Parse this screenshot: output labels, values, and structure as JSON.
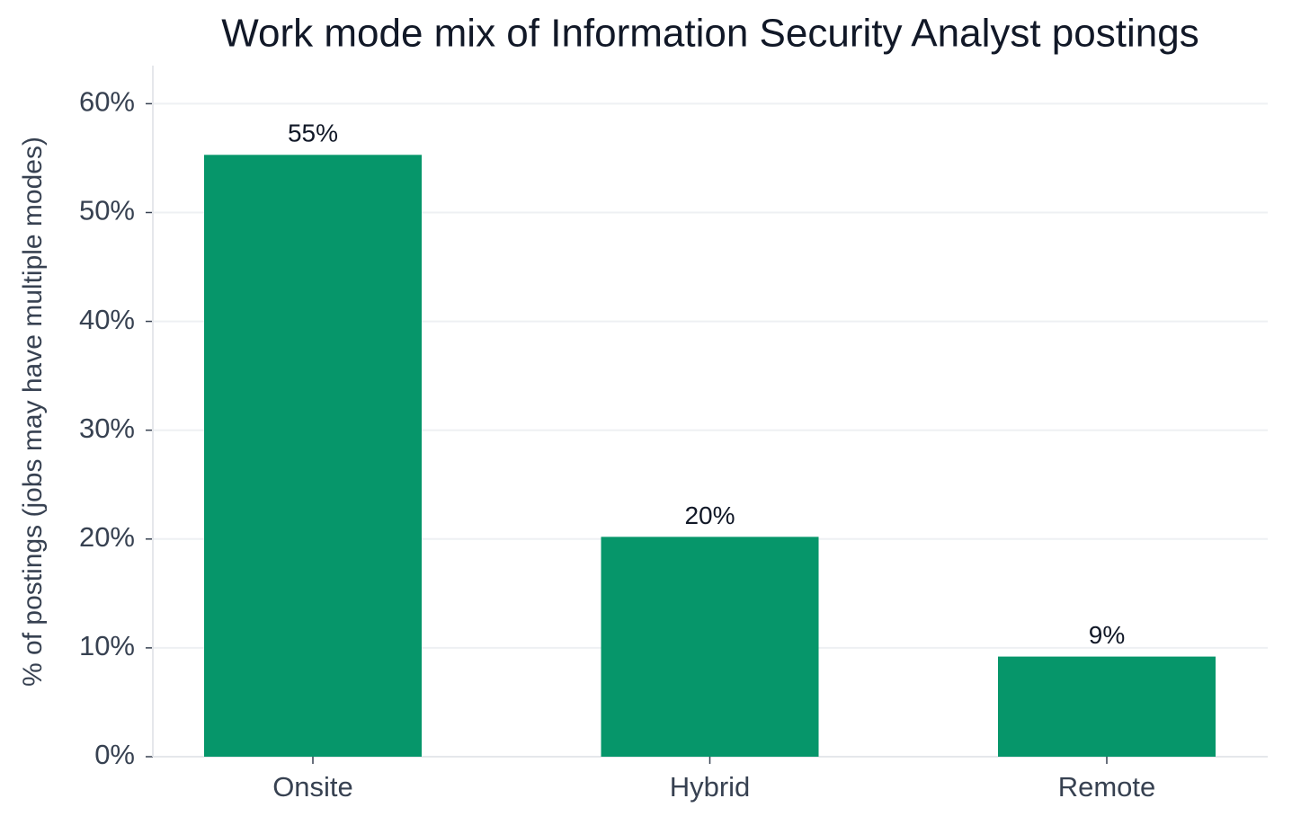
{
  "chart_data": {
    "type": "bar",
    "title": "Work mode mix of Information Security Analyst postings",
    "y_label": "% of postings (jobs may have multiple modes)",
    "categories": [
      "Onsite",
      "Hybrid",
      "Remote"
    ],
    "values": [
      55.3,
      20.2,
      9.2
    ],
    "value_labels": [
      "55%",
      "20%",
      "9%"
    ],
    "color": "#06966a",
    "ylim": [
      0,
      63.5
    ],
    "yticks": [
      {
        "value": 0,
        "label": "0%"
      },
      {
        "value": 10,
        "label": "10%"
      },
      {
        "value": 20,
        "label": "20%"
      },
      {
        "value": 30,
        "label": "30%"
      },
      {
        "value": 40,
        "label": "40%"
      },
      {
        "value": 50,
        "label": "50%"
      },
      {
        "value": 60,
        "label": "60%"
      }
    ],
    "grid": true
  }
}
